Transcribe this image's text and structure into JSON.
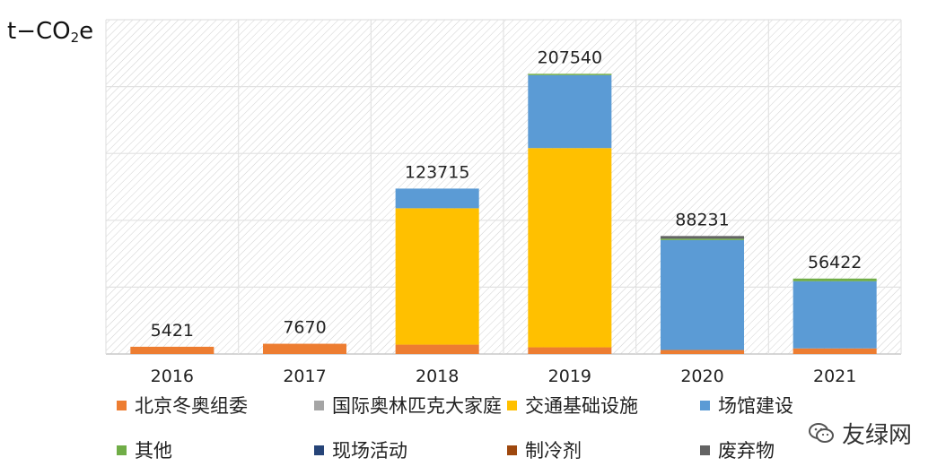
{
  "chart_data": {
    "type": "bar",
    "stacked": true,
    "ylabel": "t-CO2e",
    "ylabel_main": "t−CO",
    "ylabel_sub": "2",
    "ylabel_suffix": "e",
    "categories": [
      "2016",
      "2017",
      "2018",
      "2019",
      "2020",
      "2021"
    ],
    "totals": [
      "5421",
      "7670",
      "123715",
      "207540",
      "88231",
      "56422"
    ],
    "series": [
      {
        "name": "北京冬奥组委",
        "color": "#ED7D31",
        "values": [
          5421,
          7670,
          7000,
          5000,
          3000,
          4200
        ]
      },
      {
        "name": "国际奥林匹克大家庭",
        "color": "#A5A5A5",
        "values": [
          0,
          0,
          0,
          0,
          0,
          0
        ]
      },
      {
        "name": "交通基础设施",
        "color": "#FFC000",
        "values": [
          0,
          0,
          102000,
          149000,
          0,
          0
        ]
      },
      {
        "name": "场馆建设",
        "color": "#5B9BD5",
        "values": [
          0,
          0,
          14715,
          54540,
          82231,
          50222
        ]
      },
      {
        "name": "其他",
        "color": "#70AD47",
        "values": [
          0,
          0,
          0,
          1000,
          1000,
          2000
        ]
      },
      {
        "name": "现场活动",
        "color": "#264478",
        "values": [
          0,
          0,
          0,
          0,
          0,
          0
        ]
      },
      {
        "name": "制冷剂",
        "color": "#9E480E",
        "values": [
          0,
          0,
          0,
          0,
          0,
          0
        ]
      },
      {
        "name": "废弃物",
        "color": "#636363",
        "values": [
          0,
          0,
          0,
          0,
          2000,
          0
        ]
      }
    ],
    "ylim": [
      0,
      250000
    ],
    "grid": true,
    "legend_position": "bottom"
  },
  "watermark": {
    "text": "友绿网",
    "icon": "wechat-icon"
  }
}
